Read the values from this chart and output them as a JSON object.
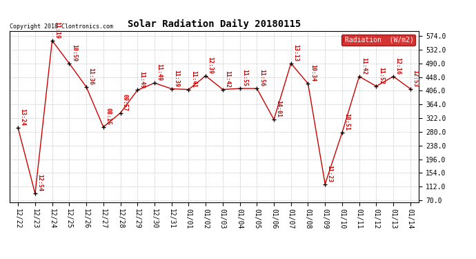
{
  "title": "Solar Radiation Daily 20180115",
  "copyright": "Copyright 2018 Clontronics.com",
  "legend_label": "Radiation  (W/m2)",
  "ylabel_values": [
    70.0,
    112.0,
    154.0,
    196.0,
    238.0,
    280.0,
    322.0,
    364.0,
    406.0,
    448.0,
    490.0,
    532.0,
    574.0
  ],
  "x_labels": [
    "12/22",
    "12/23",
    "12/24",
    "12/25",
    "12/26",
    "12/27",
    "12/28",
    "12/29",
    "12/30",
    "12/31",
    "01/01",
    "01/02",
    "01/03",
    "01/04",
    "01/05",
    "01/06",
    "01/07",
    "01/08",
    "01/09",
    "01/10",
    "01/11",
    "01/12",
    "01/13",
    "01/14"
  ],
  "y_values": [
    292,
    91,
    560,
    490,
    418,
    295,
    338,
    408,
    430,
    412,
    410,
    452,
    410,
    413,
    413,
    318,
    490,
    428,
    120,
    278,
    450,
    420,
    450,
    412
  ],
  "time_labels": [
    "13:24",
    "12:54",
    "11:19",
    "10:59",
    "11:36",
    "08:15",
    "09:57",
    "11:49",
    "11:49",
    "11:39",
    "11:41",
    "12:39",
    "11:42",
    "11:55",
    "11:56",
    "14:01",
    "13:13",
    "10:34",
    "11:23",
    "10:51",
    "11:42",
    "11:52",
    "12:16",
    "12:53"
  ],
  "line_color": "#cc0000",
  "marker_color": "#000000",
  "bg_color": "#ffffff",
  "grid_color": "#bbbbbb",
  "legend_bg": "#cc0000",
  "legend_text_color": "#ffffff",
  "title_fontsize": 10,
  "tick_fontsize": 7,
  "label_fontsize": 6,
  "copyright_fontsize": 6,
  "ylim_min": 70.0,
  "ylim_max": 574.0
}
